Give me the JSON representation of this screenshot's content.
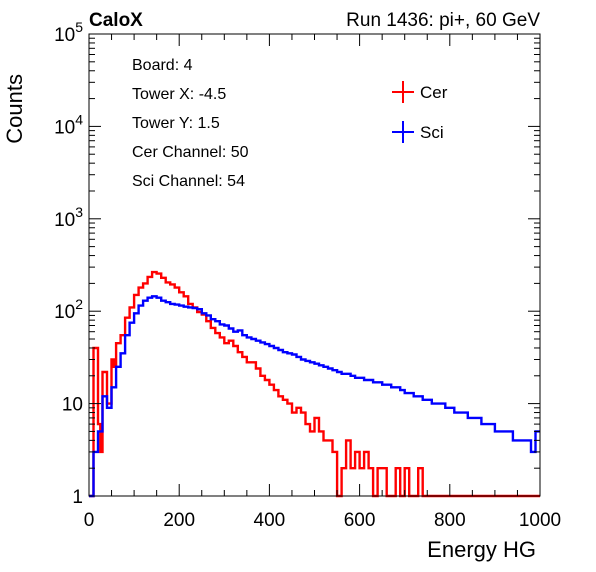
{
  "header": {
    "brand": "CaloX",
    "run_label": "Run 1436: pi+, 60 GeV"
  },
  "info_lines": [
    "Board: 4",
    "Tower X: -4.5",
    "Tower Y: 1.5",
    "Cer Channel: 50",
    "Sci Channel: 54"
  ],
  "colors": {
    "cer": "#ff0000",
    "sci": "#0000ff",
    "frame": "#000000"
  },
  "chart_data": {
    "type": "histogram",
    "title": "",
    "xlabel": "Energy HG",
    "ylabel": "Counts",
    "xlim": [
      0,
      1000
    ],
    "ylim": [
      1,
      100000
    ],
    "log_y": true,
    "grid": false,
    "legend_position": "top-right",
    "x_ticks": [
      0,
      200,
      400,
      600,
      800,
      1000
    ],
    "x_tick_labels": [
      "0",
      "200",
      "400",
      "600",
      "800",
      "1000"
    ],
    "y_ticks": [
      1,
      10,
      100,
      1000,
      10000,
      100000
    ],
    "y_tick_labels": [
      {
        "base": "1",
        "exp": ""
      },
      {
        "base": "10",
        "exp": ""
      },
      {
        "base": "10",
        "exp": "2"
      },
      {
        "base": "10",
        "exp": "3"
      },
      {
        "base": "10",
        "exp": "4"
      },
      {
        "base": "10",
        "exp": "5"
      }
    ],
    "series": [
      {
        "name": "Cer",
        "color": "#ff0000",
        "points": [
          [
            0,
            1
          ],
          [
            10,
            40
          ],
          [
            20,
            6
          ],
          [
            25,
            3
          ],
          [
            30,
            22
          ],
          [
            40,
            10
          ],
          [
            50,
            30
          ],
          [
            55,
            25
          ],
          [
            60,
            45
          ],
          [
            70,
            55
          ],
          [
            80,
            85
          ],
          [
            90,
            110
          ],
          [
            100,
            150
          ],
          [
            110,
            180
          ],
          [
            120,
            200
          ],
          [
            130,
            235
          ],
          [
            140,
            265
          ],
          [
            150,
            255
          ],
          [
            160,
            230
          ],
          [
            170,
            205
          ],
          [
            180,
            195
          ],
          [
            190,
            180
          ],
          [
            200,
            160
          ],
          [
            210,
            145
          ],
          [
            220,
            120
          ],
          [
            230,
            110
          ],
          [
            240,
            98
          ],
          [
            250,
            92
          ],
          [
            260,
            78
          ],
          [
            270,
            66
          ],
          [
            280,
            58
          ],
          [
            290,
            52
          ],
          [
            300,
            45
          ],
          [
            310,
            48
          ],
          [
            320,
            42
          ],
          [
            330,
            36
          ],
          [
            340,
            32
          ],
          [
            350,
            28
          ],
          [
            360,
            28
          ],
          [
            370,
            24
          ],
          [
            380,
            20
          ],
          [
            390,
            18
          ],
          [
            400,
            16
          ],
          [
            410,
            14
          ],
          [
            420,
            12
          ],
          [
            430,
            11
          ],
          [
            440,
            10
          ],
          [
            450,
            8
          ],
          [
            460,
            9
          ],
          [
            470,
            8
          ],
          [
            480,
            6
          ],
          [
            490,
            5
          ],
          [
            500,
            7
          ],
          [
            510,
            5
          ],
          [
            520,
            4
          ],
          [
            530,
            4
          ],
          [
            540,
            3
          ],
          [
            550,
            1
          ],
          [
            560,
            2
          ],
          [
            570,
            4
          ],
          [
            580,
            2
          ],
          [
            590,
            3
          ],
          [
            600,
            2
          ],
          [
            610,
            3
          ],
          [
            620,
            2
          ],
          [
            630,
            1
          ],
          [
            640,
            2
          ],
          [
            650,
            2
          ],
          [
            660,
            1
          ],
          [
            670,
            1
          ],
          [
            680,
            2
          ],
          [
            690,
            1
          ],
          [
            700,
            2
          ],
          [
            710,
            1
          ],
          [
            720,
            1
          ],
          [
            730,
            2
          ],
          [
            740,
            1
          ],
          [
            750,
            1
          ],
          [
            760,
            1
          ],
          [
            770,
            1
          ],
          [
            780,
            1
          ],
          [
            790,
            1
          ],
          [
            800,
            1
          ],
          [
            850,
            1
          ],
          [
            900,
            1
          ],
          [
            1000,
            1
          ]
        ]
      },
      {
        "name": "Sci",
        "color": "#0000ff",
        "points": [
          [
            0,
            1
          ],
          [
            10,
            3
          ],
          [
            20,
            5
          ],
          [
            30,
            12
          ],
          [
            40,
            9
          ],
          [
            50,
            15
          ],
          [
            60,
            25
          ],
          [
            70,
            35
          ],
          [
            80,
            55
          ],
          [
            90,
            75
          ],
          [
            100,
            95
          ],
          [
            110,
            115
          ],
          [
            120,
            130
          ],
          [
            130,
            140
          ],
          [
            140,
            145
          ],
          [
            150,
            140
          ],
          [
            160,
            130
          ],
          [
            170,
            125
          ],
          [
            180,
            120
          ],
          [
            190,
            118
          ],
          [
            200,
            115
          ],
          [
            210,
            112
          ],
          [
            220,
            110
          ],
          [
            230,
            108
          ],
          [
            240,
            105
          ],
          [
            250,
            95
          ],
          [
            260,
            90
          ],
          [
            270,
            82
          ],
          [
            280,
            78
          ],
          [
            290,
            72
          ],
          [
            300,
            70
          ],
          [
            310,
            65
          ],
          [
            320,
            60
          ],
          [
            330,
            62
          ],
          [
            340,
            55
          ],
          [
            350,
            52
          ],
          [
            360,
            50
          ],
          [
            370,
            48
          ],
          [
            380,
            46
          ],
          [
            390,
            44
          ],
          [
            400,
            42
          ],
          [
            410,
            40
          ],
          [
            420,
            38
          ],
          [
            430,
            36
          ],
          [
            440,
            35
          ],
          [
            450,
            34
          ],
          [
            460,
            32
          ],
          [
            470,
            30
          ],
          [
            480,
            29
          ],
          [
            490,
            28
          ],
          [
            500,
            27
          ],
          [
            510,
            26
          ],
          [
            520,
            25
          ],
          [
            530,
            24
          ],
          [
            540,
            23
          ],
          [
            550,
            22
          ],
          [
            560,
            21
          ],
          [
            570,
            21
          ],
          [
            580,
            20
          ],
          [
            590,
            19
          ],
          [
            600,
            19
          ],
          [
            610,
            18
          ],
          [
            620,
            18
          ],
          [
            630,
            17
          ],
          [
            640,
            17
          ],
          [
            650,
            16
          ],
          [
            660,
            16
          ],
          [
            670,
            15
          ],
          [
            680,
            15
          ],
          [
            690,
            14
          ],
          [
            700,
            13
          ],
          [
            710,
            13
          ],
          [
            720,
            12
          ],
          [
            730,
            12
          ],
          [
            740,
            11
          ],
          [
            750,
            11
          ],
          [
            760,
            10
          ],
          [
            770,
            10
          ],
          [
            780,
            10
          ],
          [
            790,
            9
          ],
          [
            800,
            9
          ],
          [
            810,
            8
          ],
          [
            820,
            8
          ],
          [
            830,
            8
          ],
          [
            840,
            7
          ],
          [
            850,
            7
          ],
          [
            860,
            7
          ],
          [
            870,
            6
          ],
          [
            880,
            6
          ],
          [
            890,
            6
          ],
          [
            900,
            5
          ],
          [
            910,
            5
          ],
          [
            920,
            5
          ],
          [
            930,
            5
          ],
          [
            940,
            4
          ],
          [
            950,
            4
          ],
          [
            960,
            4
          ],
          [
            970,
            4
          ],
          [
            980,
            3
          ],
          [
            990,
            5
          ],
          [
            1000,
            5
          ]
        ]
      }
    ]
  }
}
